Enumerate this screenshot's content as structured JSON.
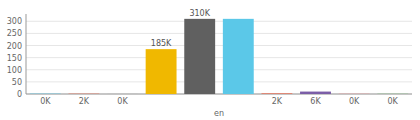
{
  "chart_data": {
    "type": "bar",
    "xlabel": "en",
    "categories": [
      "0K",
      "2K",
      "0K",
      null,
      null,
      null,
      "2K",
      "6K",
      "0K",
      "0K"
    ],
    "values": [
      1.5,
      1.5,
      1.5,
      185,
      310,
      310,
      3,
      10,
      1.5,
      1.5
    ],
    "value_labels": [
      null,
      null,
      null,
      "185K",
      "310K",
      null,
      null,
      null,
      null,
      null
    ],
    "data_labels": true,
    "colors": [
      "#5BC8E8",
      "#E8735A",
      "#C0C0C0",
      "#F0B800",
      "#606060",
      "#5BC8E8",
      "#E8735A",
      "#7B5EA7",
      "#E8A0A0",
      "#90C090"
    ],
    "ylim": [
      0,
      330
    ],
    "yticks": [
      0,
      50,
      100,
      150,
      200,
      250,
      300
    ],
    "grid": true
  }
}
